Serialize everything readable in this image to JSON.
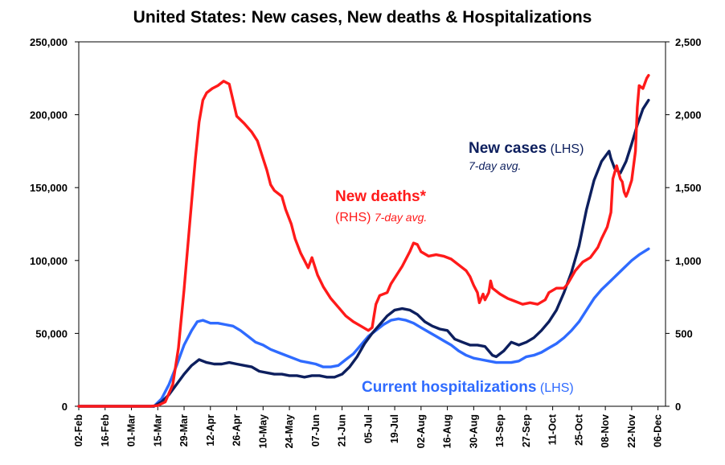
{
  "chart_data": {
    "type": "line",
    "title": "United States: New cases, New deaths & Hospitalizations",
    "x_tick_labels": [
      "02-Feb",
      "16-Feb",
      "01-Mar",
      "15-Mar",
      "29-Mar",
      "12-Apr",
      "26-Apr",
      "10-May",
      "24-May",
      "07-Jun",
      "21-Jun",
      "05-Jul",
      "19-Jul",
      "02-Aug",
      "16-Aug",
      "30-Aug",
      "13-Sep",
      "27-Sep",
      "11-Oct",
      "25-Oct",
      "08-Nov",
      "22-Nov",
      "06-Dec"
    ],
    "x_range_days_from_02Feb": [
      0,
      312
    ],
    "y_left": {
      "range": [
        0,
        250000
      ],
      "tick_labels": [
        "0",
        "50,000",
        "100,000",
        "150,000",
        "200,000",
        "250,000"
      ]
    },
    "y_right": {
      "range": [
        0,
        2500
      ],
      "tick_labels": [
        "0",
        "500",
        "1,000",
        "1,500",
        "2,000",
        "2,500"
      ]
    },
    "grid": false,
    "series": [
      {
        "key": "deaths",
        "axis": "right",
        "color": "#ff1a1a",
        "points": [
          [
            0,
            0
          ],
          [
            38,
            0
          ],
          [
            42,
            5
          ],
          [
            46,
            30
          ],
          [
            50,
            150
          ],
          [
            53,
            400
          ],
          [
            56,
            800
          ],
          [
            59,
            1250
          ],
          [
            62,
            1700
          ],
          [
            64,
            1950
          ],
          [
            66,
            2100
          ],
          [
            68,
            2150
          ],
          [
            71,
            2180
          ],
          [
            74,
            2200
          ],
          [
            77,
            2230
          ],
          [
            80,
            2210
          ],
          [
            82,
            2100
          ],
          [
            84,
            1990
          ],
          [
            88,
            1940
          ],
          [
            92,
            1880
          ],
          [
            95,
            1820
          ],
          [
            98,
            1700
          ],
          [
            100,
            1620
          ],
          [
            102,
            1520
          ],
          [
            104,
            1480
          ],
          [
            108,
            1440
          ],
          [
            110,
            1350
          ],
          [
            113,
            1250
          ],
          [
            115,
            1150
          ],
          [
            118,
            1050
          ],
          [
            120,
            1000
          ],
          [
            122,
            950
          ],
          [
            124,
            1020
          ],
          [
            127,
            900
          ],
          [
            130,
            820
          ],
          [
            134,
            740
          ],
          [
            138,
            680
          ],
          [
            142,
            620
          ],
          [
            146,
            580
          ],
          [
            150,
            550
          ],
          [
            154,
            520
          ],
          [
            156,
            540
          ],
          [
            157,
            620
          ],
          [
            158,
            700
          ],
          [
            160,
            760
          ],
          [
            164,
            780
          ],
          [
            166,
            840
          ],
          [
            168,
            880
          ],
          [
            172,
            960
          ],
          [
            176,
            1060
          ],
          [
            178,
            1120
          ],
          [
            180,
            1110
          ],
          [
            182,
            1060
          ],
          [
            186,
            1030
          ],
          [
            190,
            1040
          ],
          [
            194,
            1030
          ],
          [
            198,
            1010
          ],
          [
            202,
            970
          ],
          [
            206,
            930
          ],
          [
            208,
            890
          ],
          [
            210,
            830
          ],
          [
            212,
            780
          ],
          [
            213,
            710
          ],
          [
            214,
            740
          ],
          [
            215,
            770
          ],
          [
            216,
            730
          ],
          [
            218,
            780
          ],
          [
            219,
            860
          ],
          [
            220,
            810
          ],
          [
            224,
            770
          ],
          [
            228,
            740
          ],
          [
            232,
            720
          ],
          [
            236,
            700
          ],
          [
            240,
            710
          ],
          [
            244,
            700
          ],
          [
            248,
            730
          ],
          [
            250,
            780
          ],
          [
            254,
            810
          ],
          [
            258,
            810
          ],
          [
            260,
            840
          ],
          [
            264,
            930
          ],
          [
            268,
            990
          ],
          [
            272,
            1020
          ],
          [
            276,
            1090
          ],
          [
            278,
            1150
          ],
          [
            281,
            1230
          ],
          [
            283,
            1330
          ],
          [
            284,
            1560
          ],
          [
            286,
            1650
          ],
          [
            288,
            1560
          ],
          [
            289,
            1540
          ],
          [
            290,
            1470
          ],
          [
            291,
            1440
          ],
          [
            292,
            1470
          ],
          [
            294,
            1550
          ],
          [
            296,
            1750
          ],
          [
            297,
            2050
          ],
          [
            298,
            2200
          ],
          [
            300,
            2180
          ],
          [
            302,
            2250
          ],
          [
            303,
            2270
          ]
        ]
      },
      {
        "key": "cases",
        "axis": "left",
        "color": "#0d1f5e",
        "points": [
          [
            0,
            0
          ],
          [
            40,
            0
          ],
          [
            44,
            3000
          ],
          [
            48,
            8000
          ],
          [
            52,
            15000
          ],
          [
            56,
            22000
          ],
          [
            60,
            28000
          ],
          [
            64,
            32000
          ],
          [
            68,
            30000
          ],
          [
            72,
            29000
          ],
          [
            76,
            29000
          ],
          [
            80,
            30000
          ],
          [
            84,
            29000
          ],
          [
            88,
            28000
          ],
          [
            92,
            27000
          ],
          [
            96,
            24000
          ],
          [
            100,
            23000
          ],
          [
            104,
            22000
          ],
          [
            108,
            22000
          ],
          [
            112,
            21000
          ],
          [
            116,
            21000
          ],
          [
            120,
            20000
          ],
          [
            124,
            21000
          ],
          [
            128,
            21000
          ],
          [
            132,
            20000
          ],
          [
            136,
            20000
          ],
          [
            140,
            22000
          ],
          [
            144,
            27000
          ],
          [
            148,
            34000
          ],
          [
            152,
            43000
          ],
          [
            156,
            50000
          ],
          [
            160,
            56000
          ],
          [
            164,
            62000
          ],
          [
            168,
            66000
          ],
          [
            172,
            67000
          ],
          [
            176,
            66000
          ],
          [
            180,
            63000
          ],
          [
            184,
            58000
          ],
          [
            188,
            55000
          ],
          [
            192,
            53000
          ],
          [
            196,
            52000
          ],
          [
            200,
            46000
          ],
          [
            204,
            44000
          ],
          [
            208,
            42000
          ],
          [
            212,
            42000
          ],
          [
            216,
            41000
          ],
          [
            220,
            35000
          ],
          [
            222,
            34000
          ],
          [
            226,
            38000
          ],
          [
            230,
            44000
          ],
          [
            234,
            42000
          ],
          [
            238,
            44000
          ],
          [
            242,
            47000
          ],
          [
            246,
            52000
          ],
          [
            250,
            58000
          ],
          [
            254,
            66000
          ],
          [
            258,
            78000
          ],
          [
            262,
            92000
          ],
          [
            266,
            110000
          ],
          [
            270,
            135000
          ],
          [
            274,
            155000
          ],
          [
            278,
            168000
          ],
          [
            282,
            175000
          ],
          [
            283,
            170000
          ],
          [
            285,
            163000
          ],
          [
            288,
            160000
          ],
          [
            291,
            168000
          ],
          [
            294,
            180000
          ],
          [
            297,
            193000
          ],
          [
            300,
            204000
          ],
          [
            303,
            210000
          ]
        ]
      },
      {
        "key": "hospitalizations",
        "axis": "left",
        "color": "#2f6bff",
        "points": [
          [
            0,
            0
          ],
          [
            40,
            0
          ],
          [
            44,
            5000
          ],
          [
            48,
            15000
          ],
          [
            52,
            28000
          ],
          [
            56,
            42000
          ],
          [
            60,
            52000
          ],
          [
            63,
            58000
          ],
          [
            66,
            59000
          ],
          [
            70,
            57000
          ],
          [
            74,
            57000
          ],
          [
            78,
            56000
          ],
          [
            82,
            55000
          ],
          [
            86,
            52000
          ],
          [
            90,
            48000
          ],
          [
            94,
            44000
          ],
          [
            98,
            42000
          ],
          [
            102,
            39000
          ],
          [
            106,
            37000
          ],
          [
            110,
            35000
          ],
          [
            114,
            33000
          ],
          [
            118,
            31000
          ],
          [
            122,
            30000
          ],
          [
            126,
            29000
          ],
          [
            130,
            27000
          ],
          [
            134,
            27000
          ],
          [
            138,
            28000
          ],
          [
            142,
            32000
          ],
          [
            146,
            36000
          ],
          [
            150,
            42000
          ],
          [
            154,
            48000
          ],
          [
            158,
            52000
          ],
          [
            162,
            56000
          ],
          [
            166,
            59000
          ],
          [
            170,
            60000
          ],
          [
            174,
            59000
          ],
          [
            178,
            57000
          ],
          [
            182,
            54000
          ],
          [
            186,
            51000
          ],
          [
            190,
            48000
          ],
          [
            194,
            45000
          ],
          [
            198,
            42000
          ],
          [
            202,
            38000
          ],
          [
            206,
            35000
          ],
          [
            210,
            33000
          ],
          [
            214,
            32000
          ],
          [
            218,
            31000
          ],
          [
            222,
            30000
          ],
          [
            226,
            30000
          ],
          [
            230,
            30000
          ],
          [
            234,
            31000
          ],
          [
            238,
            34000
          ],
          [
            242,
            35000
          ],
          [
            246,
            37000
          ],
          [
            250,
            40000
          ],
          [
            254,
            43000
          ],
          [
            258,
            47000
          ],
          [
            262,
            52000
          ],
          [
            266,
            58000
          ],
          [
            270,
            66000
          ],
          [
            274,
            74000
          ],
          [
            278,
            80000
          ],
          [
            282,
            85000
          ],
          [
            286,
            90000
          ],
          [
            290,
            95000
          ],
          [
            294,
            100000
          ],
          [
            298,
            104000
          ],
          [
            303,
            108000
          ]
        ]
      }
    ],
    "annotations": {
      "cases": {
        "main": "New cases",
        "suffix": " (LHS)",
        "sub": "7-day avg.",
        "color": "#0d1f5e"
      },
      "deaths": {
        "main": "New deaths*",
        "suffix": "(RHS) ",
        "sub": "7-day avg.",
        "color": "#ff1a1a"
      },
      "hosp": {
        "main": "Current hospitalizations",
        "suffix": " (LHS)",
        "color": "#2f6bff"
      }
    }
  }
}
